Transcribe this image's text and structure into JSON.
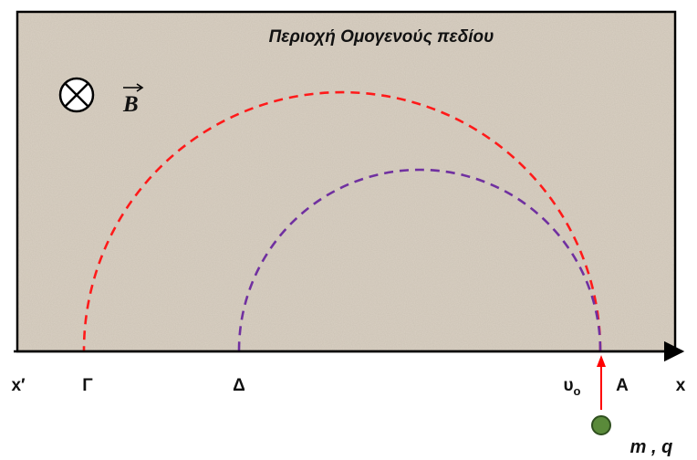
{
  "field_region": {
    "title": "Περιοχή Ομογενούς πεδίου",
    "background_color": "#d9d0c3",
    "border_color": "#000000"
  },
  "magnetic_field": {
    "symbol": "B",
    "direction_icon": "into-page-circle-cross-icon"
  },
  "axis": {
    "left_label": "x′",
    "right_label": "x"
  },
  "points": {
    "gamma": "Γ",
    "delta": "Δ",
    "a": "A"
  },
  "velocity": {
    "label": "υ",
    "subscript": "o",
    "arrow_color": "#ff0000"
  },
  "particle": {
    "label": "m , q",
    "color": "#5a8a3a"
  },
  "trajectories": {
    "outer_color": "#ff1a1a",
    "inner_color": "#7030a0"
  }
}
